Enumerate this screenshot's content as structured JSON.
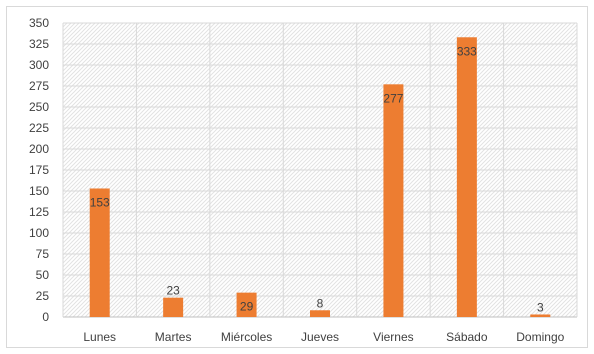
{
  "chart_data": {
    "type": "bar",
    "categories": [
      "Lunes",
      "Martes",
      "Miércoles",
      "Jueves",
      "Viernes",
      "Sábado",
      "Domingo"
    ],
    "values": [
      153,
      23,
      29,
      8,
      277,
      333,
      3
    ],
    "title": "",
    "xlabel": "",
    "ylabel": "",
    "ylim": [
      0,
      350
    ],
    "yticks": [
      0,
      25,
      50,
      75,
      100,
      125,
      150,
      175,
      200,
      225,
      250,
      275,
      300,
      325,
      350
    ],
    "grid": true,
    "legend": "none",
    "bar_color": "#ED7D31",
    "data_labels": true
  }
}
